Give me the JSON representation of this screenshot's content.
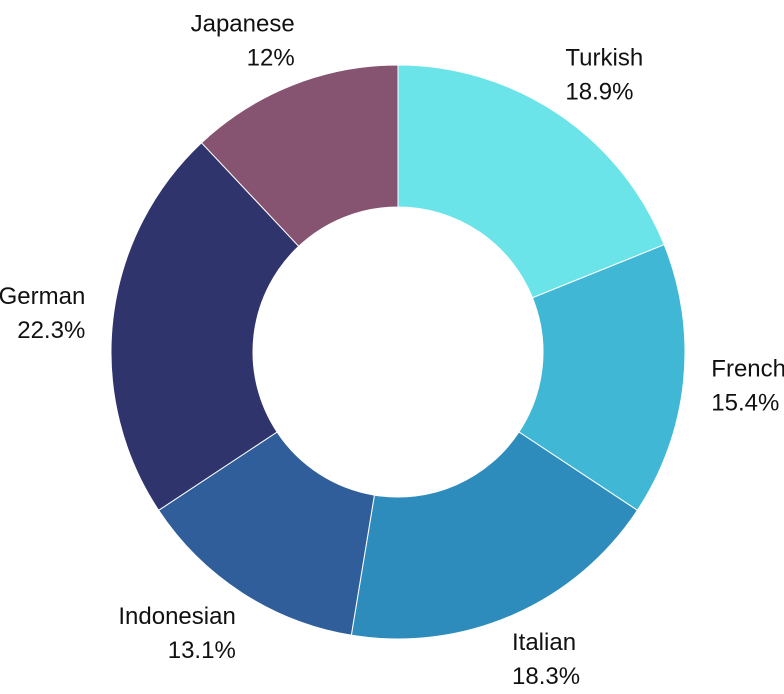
{
  "chart_data": {
    "type": "pie",
    "style": "donut",
    "slices": [
      {
        "label": "Turkish",
        "value": 18.9,
        "value_text": "18.9%",
        "color": "#6ae4e8"
      },
      {
        "label": "French",
        "value": 15.4,
        "value_text": "15.4%",
        "color": "#41b7d6"
      },
      {
        "label": "Italian",
        "value": 18.3,
        "value_text": "18.3%",
        "color": "#2e8cbd"
      },
      {
        "label": "Indonesian",
        "value": 13.1,
        "value_text": "13.1%",
        "color": "#305e9a"
      },
      {
        "label": "German",
        "value": 22.3,
        "value_text": "22.3%",
        "color": "#30346c"
      },
      {
        "label": "Japanese",
        "value": 12.0,
        "value_text": "12%",
        "color": "#865370"
      }
    ],
    "start_angle_deg": 90,
    "direction": "clockwise"
  }
}
